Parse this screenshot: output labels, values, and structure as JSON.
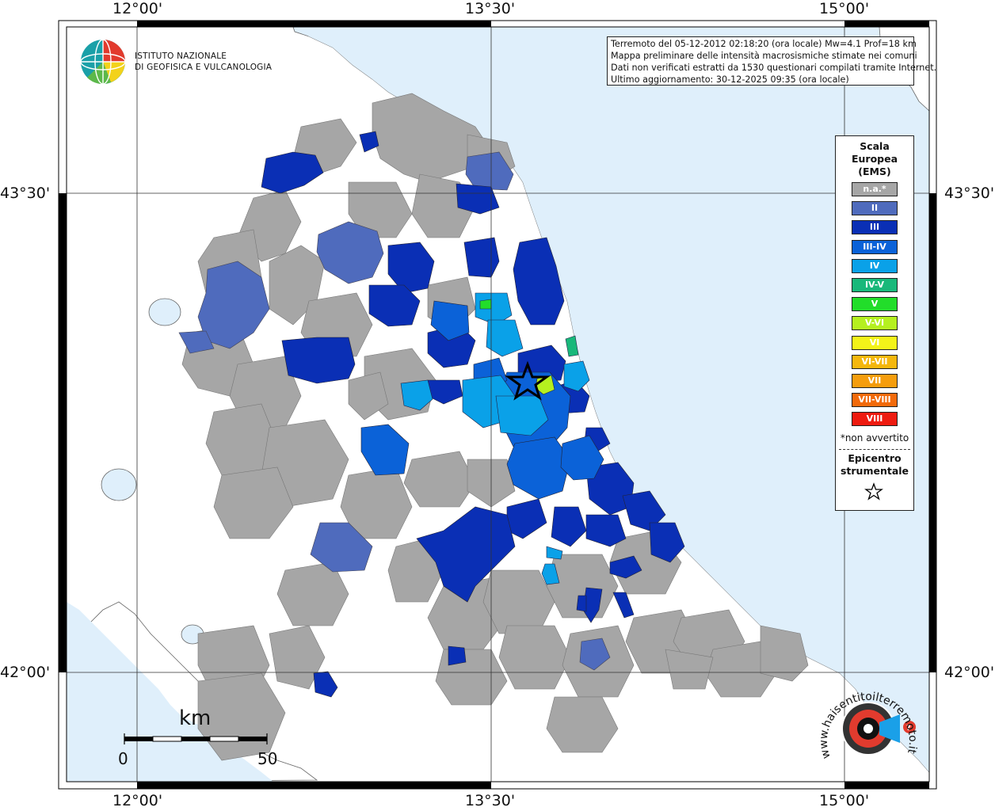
{
  "frame": {
    "top_labels": [
      "12°00'",
      "13°30'",
      "15°00'"
    ],
    "bottom_labels": [
      "12°00'",
      "13°30'",
      "15°00'"
    ],
    "left_labels": [
      "43°30'",
      "42°00'"
    ],
    "right_labels": [
      "43°30'",
      "42°00'"
    ]
  },
  "info_box": {
    "lines": [
      "Terremoto del 05-12-2012 02:18:20 (ora locale) Mw=4.1 Prof=18 km",
      "Mappa preliminare delle intensità macrosismiche stimate nei comuni",
      "Dati non verificati estratti da 1530 questionari compilati tramite Internet.",
      "Ultimo aggiornamento: 30-12-2025 09:35 (ora locale)"
    ]
  },
  "logo": {
    "line1": "ISTITUTO NAZIONALE",
    "line2": "DI GEOFISICA E VULCANOLOGIA"
  },
  "legend": {
    "title_line1": "Scala",
    "title_line2": "Europea",
    "title_line3": "(EMS)",
    "classes": [
      {
        "label": "n.a.*",
        "color": "#a6a6a6"
      },
      {
        "label": "II",
        "color": "#4f6bbd"
      },
      {
        "label": "III",
        "color": "#0a2fb5"
      },
      {
        "label": "III-IV",
        "color": "#0b62d8"
      },
      {
        "label": "IV",
        "color": "#0aa1e8"
      },
      {
        "label": "IV-V",
        "color": "#19b87a"
      },
      {
        "label": "V",
        "color": "#22dd2a"
      },
      {
        "label": "V-VI",
        "color": "#b5f01f"
      },
      {
        "label": "VI",
        "color": "#f3f319"
      },
      {
        "label": "VI-VII",
        "color": "#f5b70d"
      },
      {
        "label": "VII",
        "color": "#f59d0d"
      },
      {
        "label": "VII-VIII",
        "color": "#f26a0b"
      },
      {
        "label": "VIII",
        "color": "#ee1b10"
      }
    ],
    "note": "*non avvertito",
    "epicentre_line1": "Epicentro",
    "epicentre_line2": "strumentale"
  },
  "scalebar": {
    "unit": "km",
    "min_label": "0",
    "max_label": "50"
  },
  "badge": {
    "text": "www.haisentitoilterremoto.it"
  },
  "colors": {
    "sea": "#dfeffb",
    "land": "#ffffff",
    "grid": "#333333",
    "frame": "#000000"
  }
}
